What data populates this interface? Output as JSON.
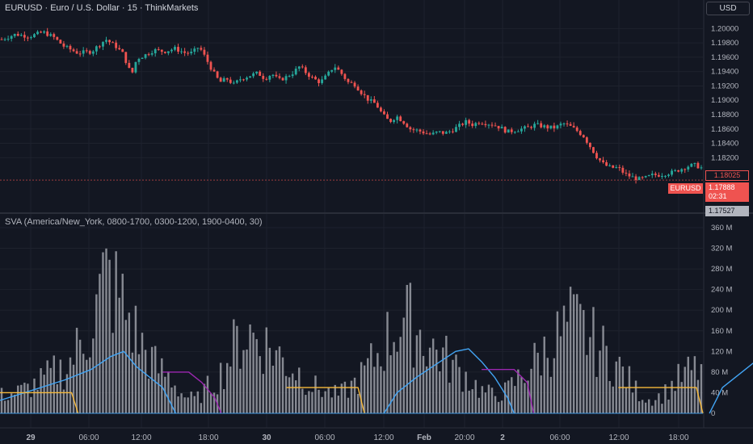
{
  "header": {
    "symbol_title": "EURUSD · Euro / U.S. Dollar · 15 · ThinkMarkets",
    "currency_button": "USD"
  },
  "indicator": {
    "title": "SVA (America/New_York, 0800-1700, 0300-1200, 1900-0400, 30)"
  },
  "tags": {
    "last_price_label": "EURUSD",
    "last_price": "1.17888",
    "countdown": "02:31",
    "marker_price": "1.18025",
    "bottom_price": "1.17527"
  },
  "colors": {
    "background": "#131722",
    "up": "#26a69a",
    "down": "#ef5350",
    "volume_bar": "#9b9ea6",
    "ny_session": "#9c27b0",
    "london_session": "#42a5f5",
    "asia_session": "#f6b93b",
    "grid": "#1e222d"
  },
  "chart_data": [
    {
      "type": "candlestick",
      "title": "EURUSD · Euro / U.S. Dollar · 15 · ThinkMarkets",
      "ylim": [
        1.1745,
        1.2015
      ],
      "y_ticks": [
        "1.20000",
        "1.19800",
        "1.19600",
        "1.19400",
        "1.19200",
        "1.19000",
        "1.18800",
        "1.18600",
        "1.18400",
        "1.18200",
        "1.18025",
        "1.17888",
        "1.17527"
      ],
      "x_ticks": [
        "29",
        "06:00",
        "12:00",
        "18:00",
        "30",
        "06:00",
        "12:00",
        "Feb",
        "20:00",
        "2",
        "06:00",
        "12:00",
        "18:00"
      ],
      "close_path": [
        [
          0,
          1.1985
        ],
        [
          8,
          1.1992
        ],
        [
          16,
          1.1989
        ],
        [
          24,
          1.1995
        ],
        [
          30,
          1.1988
        ],
        [
          36,
          1.1975
        ],
        [
          44,
          1.1966
        ],
        [
          52,
          1.1968
        ],
        [
          60,
          1.1985
        ],
        [
          66,
          1.1975
        ],
        [
          70,
          1.1965
        ],
        [
          75,
          1.1935
        ],
        [
          78,
          1.1958
        ],
        [
          82,
          1.1962
        ],
        [
          88,
          1.197
        ],
        [
          94,
          1.1968
        ],
        [
          100,
          1.1972
        ],
        [
          106,
          1.1966
        ],
        [
          110,
          1.1966
        ],
        [
          114,
          1.1975
        ],
        [
          118,
          1.1958
        ],
        [
          122,
          1.194
        ],
        [
          126,
          1.1925
        ],
        [
          130,
          1.193
        ],
        [
          134,
          1.1922
        ],
        [
          138,
          1.193
        ],
        [
          144,
          1.1935
        ],
        [
          148,
          1.1938
        ],
        [
          152,
          1.193
        ],
        [
          156,
          1.1937
        ],
        [
          160,
          1.1928
        ],
        [
          164,
          1.1932
        ],
        [
          168,
          1.1938
        ],
        [
          172,
          1.1947
        ],
        [
          176,
          1.1938
        ],
        [
          180,
          1.193
        ],
        [
          184,
          1.1925
        ],
        [
          188,
          1.1935
        ],
        [
          192,
          1.1948
        ],
        [
          196,
          1.1938
        ],
        [
          200,
          1.1925
        ],
        [
          204,
          1.1922
        ],
        [
          208,
          1.191
        ],
        [
          212,
          1.19
        ],
        [
          216,
          1.1895
        ],
        [
          220,
          1.188
        ],
        [
          224,
          1.187
        ],
        [
          228,
          1.1878
        ],
        [
          232,
          1.187
        ],
        [
          236,
          1.186
        ],
        [
          240,
          1.1858
        ],
        [
          244,
          1.1855
        ],
        [
          248,
          1.1852
        ],
        [
          252,
          1.1856
        ],
        [
          256,
          1.1854
        ],
        [
          260,
          1.1858
        ],
        [
          264,
          1.1864
        ],
        [
          268,
          1.187
        ],
        [
          272,
          1.1866
        ],
        [
          276,
          1.187
        ],
        [
          280,
          1.1868
        ],
        [
          284,
          1.1866
        ],
        [
          288,
          1.1862
        ],
        [
          292,
          1.1856
        ],
        [
          296,
          1.1858
        ],
        [
          300,
          1.186
        ],
        [
          304,
          1.1862
        ],
        [
          308,
          1.1866
        ],
        [
          312,
          1.1864
        ],
        [
          316,
          1.1862
        ],
        [
          320,
          1.1862
        ],
        [
          324,
          1.1868
        ],
        [
          328,
          1.1864
        ],
        [
          332,
          1.1858
        ],
        [
          336,
          1.185
        ],
        [
          340,
          1.1835
        ],
        [
          344,
          1.182
        ],
        [
          348,
          1.181
        ],
        [
          352,
          1.1806
        ],
        [
          356,
          1.1806
        ],
        [
          360,
          1.1797
        ],
        [
          364,
          1.1793
        ],
        [
          368,
          1.179
        ],
        [
          372,
          1.1792
        ],
        [
          376,
          1.1796
        ],
        [
          380,
          1.1796
        ],
        [
          384,
          1.1798
        ],
        [
          388,
          1.18
        ],
        [
          392,
          1.1804
        ],
        [
          396,
          1.1808
        ],
        [
          400,
          1.181
        ],
        [
          404,
          1.1806
        ]
      ],
      "last_price": 1.17888
    },
    {
      "type": "bar+line",
      "title": "SVA (America/New_York, 0800-1700, 0300-1200, 1900-0400, 30)",
      "ylim": [
        0,
        360000000
      ],
      "y_ticks": [
        "0",
        "40 M",
        "80 M",
        "120 M",
        "160 M",
        "200 M",
        "240 M",
        "280 M",
        "320 M",
        "360 M"
      ],
      "volume_profile": [
        [
          0,
          40
        ],
        [
          4,
          45
        ],
        [
          8,
          55
        ],
        [
          12,
          70
        ],
        [
          16,
          90
        ],
        [
          20,
          100
        ],
        [
          24,
          150
        ],
        [
          28,
          200
        ],
        [
          32,
          300
        ],
        [
          36,
          260
        ],
        [
          40,
          200
        ],
        [
          44,
          140
        ],
        [
          48,
          100
        ],
        [
          52,
          80
        ],
        [
          56,
          40
        ],
        [
          60,
          30
        ],
        [
          64,
          60
        ],
        [
          68,
          90
        ],
        [
          72,
          150
        ],
        [
          76,
          180
        ],
        [
          80,
          160
        ],
        [
          84,
          140
        ],
        [
          88,
          110
        ],
        [
          92,
          90
        ],
        [
          96,
          60
        ],
        [
          100,
          50
        ],
        [
          104,
          40
        ],
        [
          108,
          60
        ],
        [
          112,
          90
        ],
        [
          116,
          130
        ],
        [
          120,
          175
        ],
        [
          124,
          210
        ],
        [
          128,
          190
        ],
        [
          132,
          150
        ],
        [
          136,
          130
        ],
        [
          140,
          100
        ],
        [
          144,
          80
        ],
        [
          148,
          50
        ],
        [
          152,
          40
        ],
        [
          156,
          50
        ],
        [
          160,
          80
        ],
        [
          164,
          110
        ],
        [
          168,
          140
        ],
        [
          172,
          170
        ],
        [
          176,
          200
        ],
        [
          180,
          180
        ],
        [
          184,
          150
        ],
        [
          188,
          120
        ],
        [
          192,
          90
        ],
        [
          196,
          50
        ],
        [
          200,
          30
        ],
        [
          204,
          40
        ],
        [
          208,
          70
        ],
        [
          212,
          90
        ],
        [
          216,
          100
        ]
      ],
      "series": [
        {
          "name": "",
          "color": "#42a5f5",
          "segments": [
            [
              [
                0,
                25
              ],
              [
                10,
                45
              ],
              [
                20,
                65
              ],
              [
                28,
                85
              ],
              [
                34,
                110
              ],
              [
                38,
                120
              ],
              [
                42,
                90
              ],
              [
                46,
                70
              ],
              [
                50,
                50
              ],
              [
                54,
                0
              ]
            ],
            [
              [
                118,
                0
              ],
              [
                122,
                40
              ],
              [
                128,
                70
              ],
              [
                134,
                95
              ],
              [
                140,
                120
              ],
              [
                144,
                125
              ],
              [
                148,
                100
              ],
              [
                152,
                70
              ],
              [
                156,
                30
              ],
              [
                158,
                0
              ]
            ],
            [
              [
                218,
                0
              ],
              [
                222,
                50
              ],
              [
                228,
                80
              ],
              [
                234,
                110
              ],
              [
                240,
                125
              ],
              [
                246,
                130
              ],
              [
                250,
                100
              ],
              [
                254,
                60
              ],
              [
                258,
                0
              ]
            ]
          ]
        },
        {
          "name": "",
          "color": "#9c27b0",
          "segments": [
            [
              [
                50,
                80
              ],
              [
                58,
                80
              ],
              [
                62,
                60
              ],
              [
                66,
                30
              ],
              [
                68,
                0
              ]
            ],
            [
              [
                148,
                85
              ],
              [
                158,
                85
              ],
              [
                162,
                60
              ],
              [
                164,
                0
              ]
            ],
            [
              [
                250,
                85
              ],
              [
                262,
                85
              ],
              [
                266,
                50
              ],
              [
                268,
                0
              ]
            ]
          ]
        },
        {
          "name": "",
          "color": "#f6b93b",
          "segments": [
            [
              [
                0,
                40
              ],
              [
                22,
                40
              ],
              [
                24,
                0
              ]
            ],
            [
              [
                88,
                50
              ],
              [
                110,
                50
              ],
              [
                112,
                0
              ]
            ],
            [
              [
                190,
                50
              ],
              [
                214,
                50
              ],
              [
                216,
                0
              ]
            ]
          ]
        }
      ]
    }
  ]
}
